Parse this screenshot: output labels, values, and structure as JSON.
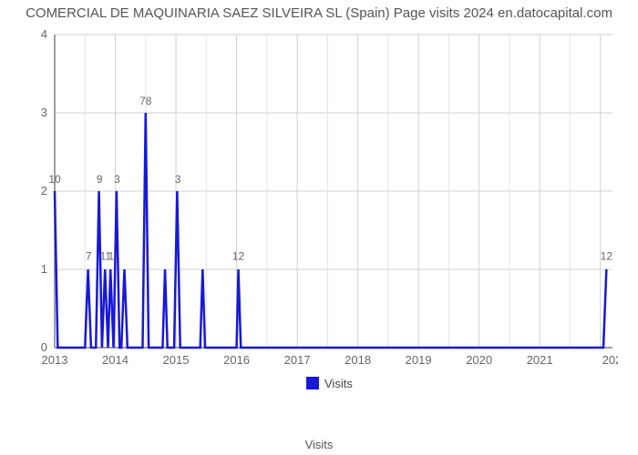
{
  "title": "COMERCIAL DE MAQUINARIA SAEZ SILVEIRA SL (Spain) Page visits 2024 en.datocapital.com",
  "chart": {
    "type": "line",
    "xlim": [
      2013,
      2022.2
    ],
    "ylim": [
      0,
      4
    ],
    "yticks": [
      0,
      1,
      2,
      3,
      4
    ],
    "xticks": [
      2013,
      2014,
      2015,
      2016,
      2017,
      2018,
      2019,
      2020,
      2021
    ],
    "xtick_last_label": "202",
    "xlabel": "Visits",
    "grid_color": "#d0d0d0",
    "axis_color": "#808080",
    "background_color": "#ffffff",
    "series": {
      "color": "#1818d8",
      "line_width": 2.5,
      "points": [
        [
          2013.0,
          2.0
        ],
        [
          2013.05,
          0.0
        ],
        [
          2013.5,
          0.0
        ],
        [
          2013.55,
          1.0
        ],
        [
          2013.6,
          0.0
        ],
        [
          2013.68,
          0.0
        ],
        [
          2013.73,
          2.0
        ],
        [
          2013.78,
          0.0
        ],
        [
          2013.83,
          1.0
        ],
        [
          2013.88,
          0.0
        ],
        [
          2013.92,
          1.0
        ],
        [
          2013.97,
          0.0
        ],
        [
          2014.02,
          2.0
        ],
        [
          2014.07,
          0.0
        ],
        [
          2014.1,
          0.0
        ],
        [
          2014.15,
          1.0
        ],
        [
          2014.2,
          0.0
        ],
        [
          2014.45,
          0.0
        ],
        [
          2014.5,
          3.0
        ],
        [
          2014.55,
          0.0
        ],
        [
          2014.78,
          0.0
        ],
        [
          2014.82,
          1.0
        ],
        [
          2014.86,
          0.0
        ],
        [
          2014.97,
          0.0
        ],
        [
          2015.02,
          2.0
        ],
        [
          2015.07,
          0.0
        ],
        [
          2015.4,
          0.0
        ],
        [
          2015.44,
          1.0
        ],
        [
          2015.48,
          0.0
        ],
        [
          2016.0,
          0.0
        ],
        [
          2016.03,
          1.0
        ],
        [
          2016.07,
          0.0
        ],
        [
          2022.05,
          0.0
        ],
        [
          2022.1,
          1.0
        ]
      ],
      "point_labels": [
        {
          "x": 2013.0,
          "y": 2.08,
          "text": "10"
        },
        {
          "x": 2013.56,
          "y": 1.1,
          "text": "7"
        },
        {
          "x": 2013.74,
          "y": 2.08,
          "text": "9"
        },
        {
          "x": 2013.84,
          "y": 1.1,
          "text": "11"
        },
        {
          "x": 2013.93,
          "y": 1.1,
          "text": "1"
        },
        {
          "x": 2014.03,
          "y": 2.08,
          "text": "3"
        },
        {
          "x": 2014.5,
          "y": 3.08,
          "text": "78"
        },
        {
          "x": 2015.03,
          "y": 2.08,
          "text": "3"
        },
        {
          "x": 2016.03,
          "y": 1.1,
          "text": "12"
        },
        {
          "x": 2022.1,
          "y": 1.1,
          "text": "12"
        }
      ]
    },
    "legend": {
      "label": "Visits"
    }
  }
}
